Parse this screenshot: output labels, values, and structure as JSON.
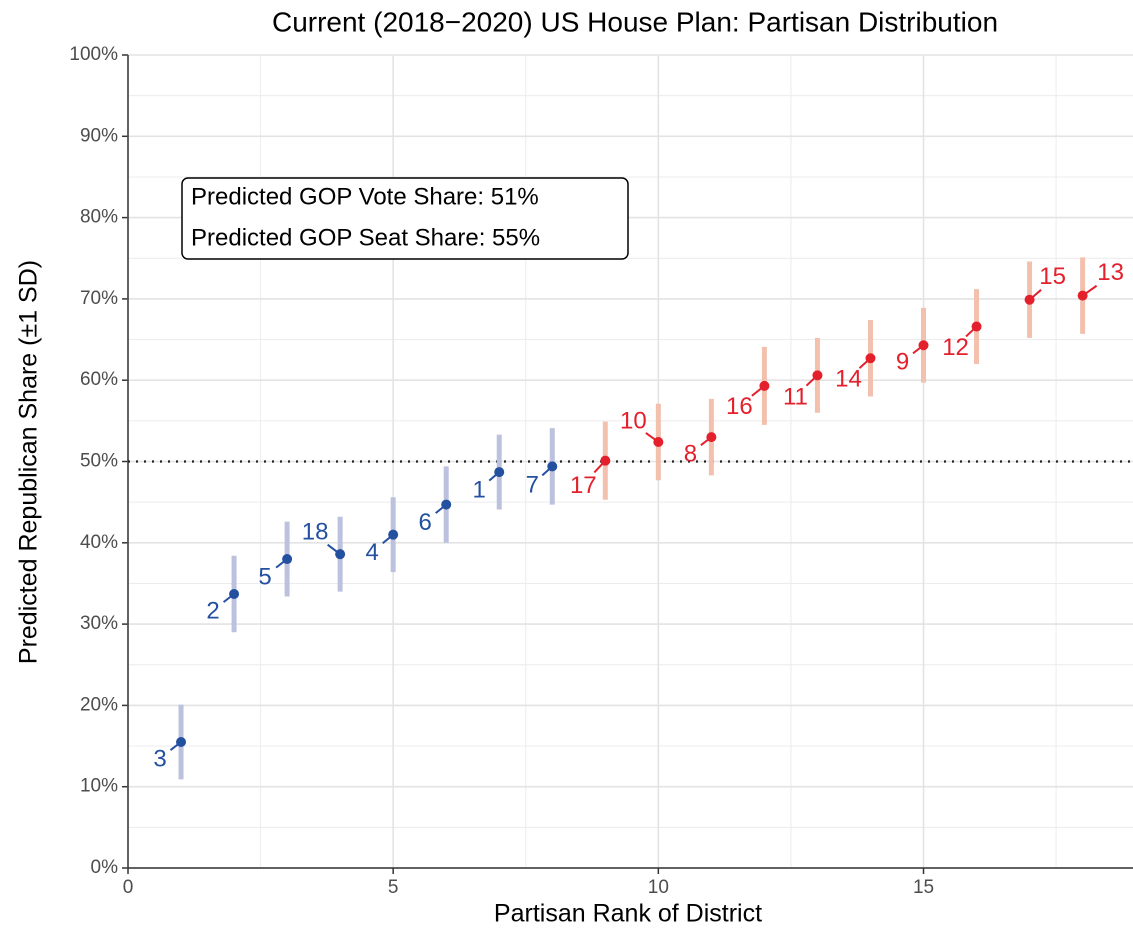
{
  "chart_data": {
    "type": "errorbar",
    "title": "Current (2018−2020) US House Plan: Partisan Distribution",
    "x_label": "Partisan Rank of District",
    "y_label": "Predicted Republican Share (±1 SD)",
    "annotation": [
      "Predicted GOP Vote Share: 51%",
      "Predicted GOP Seat Share: 55%"
    ],
    "hline": 50,
    "xlim": [
      0,
      18.95
    ],
    "ylim": [
      0,
      100
    ],
    "xticks": [
      0,
      5,
      10,
      15
    ],
    "yticks": [
      {
        "value": 0,
        "label": "0%"
      },
      {
        "value": 10,
        "label": "10%"
      },
      {
        "value": 20,
        "label": "20%"
      },
      {
        "value": 30,
        "label": "30%"
      },
      {
        "value": 40,
        "label": "40%"
      },
      {
        "value": 50,
        "label": "50%"
      },
      {
        "value": 60,
        "label": "60%"
      },
      {
        "value": 70,
        "label": "70%"
      },
      {
        "value": 80,
        "label": "80%"
      },
      {
        "value": 90,
        "label": "90%"
      },
      {
        "value": 100,
        "label": "100%"
      }
    ],
    "grid": true,
    "series": [
      {
        "color": "#2450a0",
        "error_color": "#bcc1dd",
        "x": [
          1,
          2,
          3,
          4,
          5,
          6,
          7,
          8
        ],
        "values": [
          15.5,
          33.7,
          38.0,
          38.6,
          41.0,
          44.7,
          48.7,
          49.4
        ],
        "errors": [
          4.6,
          4.7,
          4.6,
          4.6,
          4.6,
          4.7,
          4.6,
          4.7
        ],
        "labels": [
          "3",
          "2",
          "5",
          "18",
          "4",
          "6",
          "1",
          "7"
        ]
      },
      {
        "color": "#e3202b",
        "error_color": "#f3c0ae",
        "x": [
          9,
          10,
          11,
          12,
          13,
          14,
          15,
          16,
          17,
          18
        ],
        "values": [
          50.1,
          52.4,
          53.0,
          59.3,
          60.6,
          62.7,
          64.3,
          66.6,
          69.9,
          70.4
        ],
        "errors": [
          4.8,
          4.7,
          4.7,
          4.8,
          4.6,
          4.7,
          4.6,
          4.6,
          4.7,
          4.7
        ],
        "labels": [
          "17",
          "10",
          "8",
          "16",
          "11",
          "14",
          "9",
          "12",
          "15",
          "13"
        ]
      }
    ]
  }
}
